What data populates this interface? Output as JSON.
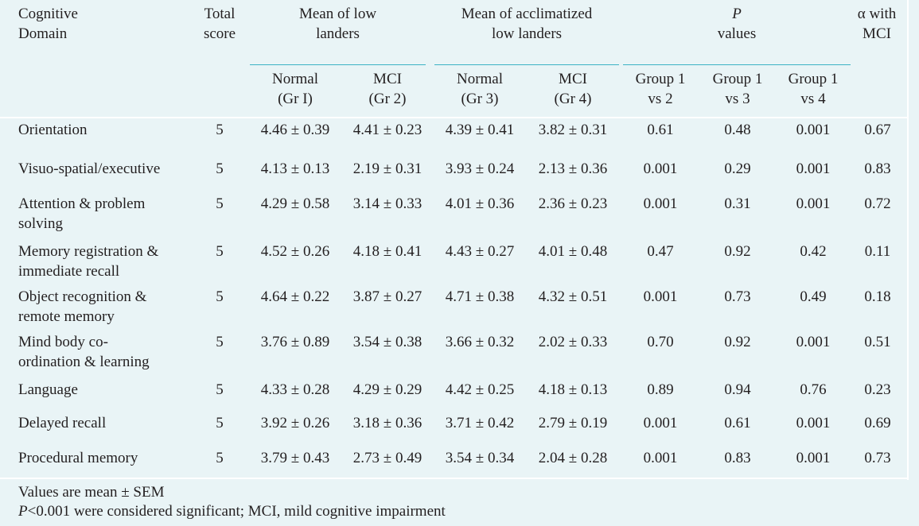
{
  "header": {
    "domain": [
      "Cognitive",
      "Domain"
    ],
    "total_score": [
      "Total",
      "score"
    ],
    "mean_low": [
      "Mean of low",
      "landers"
    ],
    "mean_accl": [
      "Mean of acclimatized",
      "low landers"
    ],
    "p_values_italic": "P",
    "p_values": "values",
    "alpha": [
      "α with",
      "MCI"
    ],
    "sub": [
      [
        "Normal",
        "(Gr I)"
      ],
      [
        "MCI",
        "(Gr 2)"
      ],
      [
        "Normal",
        "(Gr 3)"
      ],
      [
        "MCI",
        "(Gr 4)"
      ],
      [
        "Group 1",
        "vs 2"
      ],
      [
        "Group 1",
        "vs 3"
      ],
      [
        "Group 1",
        "vs 4"
      ]
    ]
  },
  "rows": [
    {
      "domain": [
        "Orientation"
      ],
      "total": "5",
      "gr1": "4.46 ± 0.39",
      "gr2": "4.41 ± 0.23",
      "gr3": "4.39 ± 0.41",
      "gr4": "3.82 ± 0.31",
      "p12": "0.61",
      "p13": "0.48",
      "p14": "0.001",
      "alpha": "0.67"
    },
    {
      "domain": [
        "Visuo-spatial/executive"
      ],
      "total": "5",
      "gr1": "4.13 ± 0.13",
      "gr2": "2.19 ± 0.31",
      "gr3": "3.93 ± 0.24",
      "gr4": "2.13 ± 0.36",
      "p12": "0.001",
      "p13": "0.29",
      "p14": "0.001",
      "alpha": "0.83"
    },
    {
      "domain": [
        "Attention & problem",
        "solving"
      ],
      "total": "5",
      "gr1": "4.29 ± 0.58",
      "gr2": "3.14 ± 0.33",
      "gr3": "4.01 ± 0.36",
      "gr4": "2.36 ± 0.23",
      "p12": "0.001",
      "p13": "0.31",
      "p14": "0.001",
      "alpha": "0.72"
    },
    {
      "domain": [
        "Memory registration &",
        "immediate recall"
      ],
      "total": "5",
      "gr1": "4.52 ± 0.26",
      "gr2": "4.18 ± 0.41",
      "gr3": "4.43 ± 0.27",
      "gr4": "4.01 ± 0.48",
      "p12": "0.47",
      "p13": "0.92",
      "p14": "0.42",
      "alpha": "0.11"
    },
    {
      "domain": [
        "Object recognition &",
        "remote memory"
      ],
      "total": "5",
      "gr1": "4.64 ± 0.22",
      "gr2": "3.87 ± 0.27",
      "gr3": "4.71 ± 0.38",
      "gr4": "4.32 ± 0.51",
      "p12": "0.001",
      "p13": "0.73",
      "p14": "0.49",
      "alpha": "0.18"
    },
    {
      "domain": [
        "Mind body co-",
        "ordination & learning"
      ],
      "total": "5",
      "gr1": "3.76 ± 0.89",
      "gr2": "3.54 ± 0.38",
      "gr3": "3.66 ± 0.32",
      "gr4": "2.02 ± 0.33",
      "p12": "0.70",
      "p13": "0.92",
      "p14": "0.001",
      "alpha": "0.51"
    },
    {
      "domain": [
        "Language"
      ],
      "total": "5",
      "gr1": "4.33 ± 0.28",
      "gr2": "4.29 ± 0.29",
      "gr3": "4.42 ± 0.25",
      "gr4": "4.18 ± 0.13",
      "p12": "0.89",
      "p13": "0.94",
      "p14": "0.76",
      "alpha": "0.23"
    },
    {
      "domain": [
        "Delayed recall"
      ],
      "total": "5",
      "gr1": "3.92 ± 0.26",
      "gr2": "3.18 ± 0.36",
      "gr3": "3.71 ± 0.42",
      "gr4": "2.79 ± 0.19",
      "p12": "0.001",
      "p13": "0.61",
      "p14": "0.001",
      "alpha": "0.69"
    },
    {
      "domain": [
        "Procedural memory"
      ],
      "total": "5",
      "gr1": "3.79 ± 0.43",
      "gr2": "2.73 ± 0.49",
      "gr3": "3.54 ± 0.34",
      "gr4": "2.04 ± 0.28",
      "p12": "0.001",
      "p13": "0.83",
      "p14": "0.001",
      "alpha": "0.73"
    }
  ],
  "footnotes": {
    "line1": "Values are mean ± SEM",
    "line2_italic": "P",
    "line2_rest": "<0.001 were considered significant; MCI, mild cognitive impairment"
  }
}
